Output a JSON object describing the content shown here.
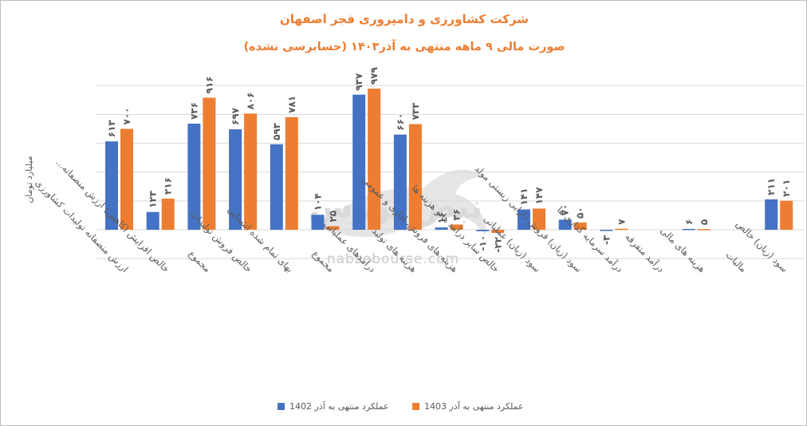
{
  "colors": {
    "s1402": "#4472c4",
    "s1403": "#ed7d31",
    "title": "#ed7d31",
    "grid": "#d9d9d9",
    "text": "#595959"
  },
  "chart_data": {
    "type": "bar",
    "title": "شرکت کشاورزی و دامپروری فجر اصفهان",
    "subtitle": "صورت مالی ۹ ماهه منتهی به آذر۱۴۰۳ (حسابرسی نشده)",
    "ylabel": "میلیارد تومان",
    "ylim": [
      -200,
      1000
    ],
    "grid": true,
    "legend_position": "bottom",
    "categories": [
      "ارزش منصفانه تولیدات کشاورزی",
      "خالص افزایش (کاهش) ارزش منصفانه...",
      "مجموع",
      "خالص فروش تولیدات",
      "بهای تمام شده انتسابی",
      "مجموع",
      "درآمدهای عملیاتی",
      "هزینه های تولید",
      "هزینه های فروش، اداری و عمومی",
      "خالص سایر درآمد ها و هزینه ها",
      "سود (زیان) عملیاتی",
      "سود (زیان) فروش دارایی زیستی مولد",
      "درآمد سرمایه گذاری ها",
      "درآمد متفرقه",
      "هزینه های مالی",
      "مالیات",
      "سود (زیان) خالص"
    ],
    "series": [
      {
        "name": "عملکرد منتهی به آذر 1402",
        "values": [
          613,
          123,
          736,
          697,
          593,
          104,
          937,
          660,
          16,
          -10,
          141,
          70,
          -3,
          null,
          6,
          null,
          211
        ],
        "labels": [
          "۶۱۳",
          "۱۲۳",
          "۷۳۶",
          "۶۹۷",
          "۵۹۳",
          "۱۰۴",
          "۹۳۷",
          "۶۶۰",
          "۱۶",
          "-۱۰",
          "۱۴۱",
          "۷۰",
          "-۳",
          "",
          "۶",
          "",
          "۲۱۱"
        ]
      },
      {
        "name": "عملکرد منتهی به آذر 1403",
        "values": [
          700,
          216,
          916,
          806,
          781,
          25,
          979,
          733,
          36,
          -22,
          147,
          50,
          7,
          null,
          5,
          null,
          201
        ],
        "labels": [
          "۷۰۰",
          "۲۱۶",
          "۹۱۶",
          "۸۰۶",
          "۷۸۱",
          "۲۵",
          "۹۷۹",
          "۷۳۳",
          "۳۶",
          "-۲۲",
          "۱۴۷",
          "۵۰",
          "۷",
          "",
          "۵",
          "",
          "۲۰۱"
        ]
      }
    ]
  },
  "watermark": {
    "url": "nabzebourse.com",
    "name": "نبض بورس"
  },
  "legend": {
    "s1402": "عملکرد منتهی به آذر 1402",
    "s1403": "عملکرد منتهی به آذر 1403"
  }
}
